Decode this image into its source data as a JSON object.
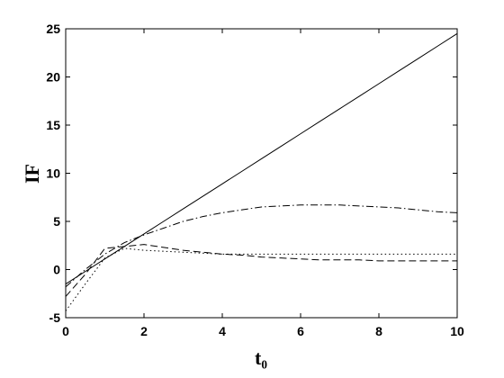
{
  "chart_data": {
    "type": "line",
    "xlabel": "t₀",
    "ylabel": "IF",
    "x": [
      0,
      0.5,
      1,
      1.5,
      2,
      2.5,
      3,
      3.5,
      4,
      4.5,
      5,
      5.5,
      6,
      6.5,
      7,
      7.5,
      8,
      8.5,
      9,
      9.5,
      10
    ],
    "series": [
      {
        "color": "#000000",
        "style": "solid",
        "values": [
          -1.5,
          -0.2,
          1.1,
          2.4,
          3.7,
          5.0,
          6.3,
          7.6,
          8.9,
          10.2,
          11.5,
          12.8,
          14.1,
          15.4,
          16.7,
          18.0,
          19.3,
          20.6,
          21.9,
          23.2,
          24.5
        ]
      },
      {
        "color": "#000000",
        "style": "dashdot",
        "values": [
          -1.8,
          0,
          1.6,
          2.8,
          3.6,
          4.3,
          5.0,
          5.5,
          5.9,
          6.2,
          6.5,
          6.6,
          6.7,
          6.7,
          6.7,
          6.6,
          6.5,
          6.4,
          6.2,
          6.0,
          5.9
        ]
      },
      {
        "color": "#000000",
        "style": "dashed",
        "values": [
          -2.8,
          -0.5,
          2.2,
          2.4,
          2.6,
          2.3,
          2.0,
          1.8,
          1.6,
          1.5,
          1.3,
          1.2,
          1.1,
          1.0,
          1.0,
          1.0,
          0.9,
          0.9,
          0.9,
          0.9,
          0.9
        ]
      },
      {
        "color": "#000000",
        "style": "dotted",
        "values": [
          -4.3,
          -1.5,
          1.2,
          2.2,
          2.0,
          1.9,
          1.8,
          1.7,
          1.6,
          1.6,
          1.6,
          1.6,
          1.6,
          1.6,
          1.6,
          1.6,
          1.6,
          1.6,
          1.6,
          1.6,
          1.6
        ]
      }
    ],
    "xlim": [
      0,
      10
    ],
    "xticks": [
      0,
      2,
      4,
      6,
      8,
      10
    ],
    "ylim": [
      -5,
      25
    ],
    "yticks": [
      -5,
      0,
      5,
      10,
      15,
      20,
      25
    ],
    "grid": false
  }
}
